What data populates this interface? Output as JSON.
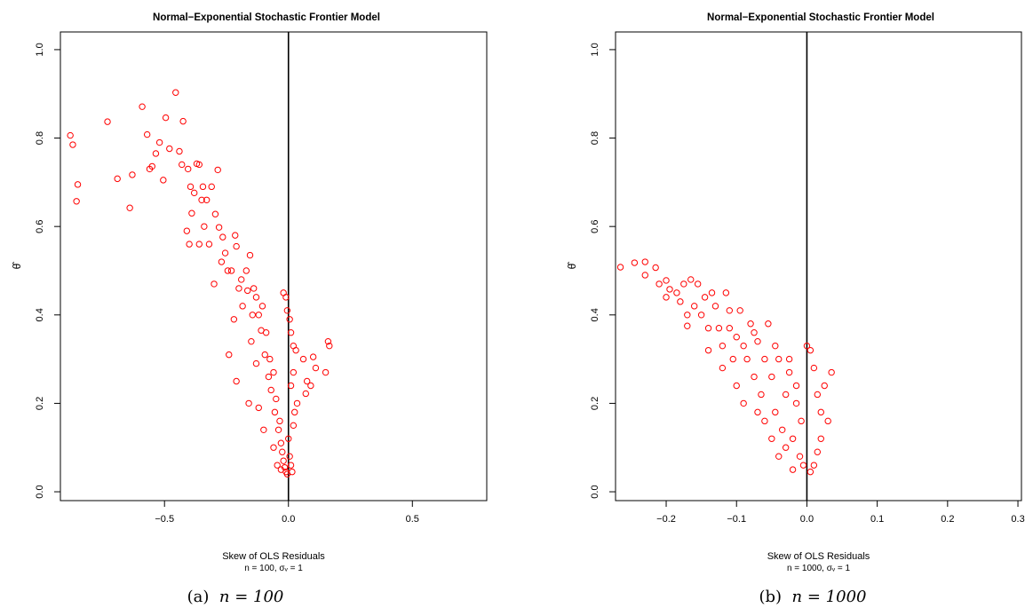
{
  "chart_data": [
    {
      "type": "scatter",
      "title": "Normal−Exponential Stochastic Frontier Model",
      "xlabel_line1": "Skew of OLS Residuals",
      "xlabel_line2": "n = 100, σᵥ = 1",
      "ylabel": "θ̂",
      "xlim": [
        -0.92,
        0.8
      ],
      "ylim": [
        -0.02,
        1.04
      ],
      "xticks": [
        -0.5,
        0.0,
        0.5
      ],
      "xtick_labels": [
        "−0.5",
        "0.0",
        "0.5"
      ],
      "yticks": [
        0.0,
        0.2,
        0.4,
        0.6,
        0.8,
        1.0
      ],
      "ytick_labels": [
        "0.0",
        "0.2",
        "0.4",
        "0.6",
        "0.8",
        "1.0"
      ],
      "vline_x": 0,
      "grid": false,
      "marker": "open-circle",
      "color": "#ff0000",
      "caption_prefix": "(a)",
      "caption_math": "n = 100",
      "points": [
        [
          -0.88,
          0.806
        ],
        [
          -0.87,
          0.785
        ],
        [
          -0.85,
          0.695
        ],
        [
          -0.855,
          0.657
        ],
        [
          -0.73,
          0.837
        ],
        [
          -0.69,
          0.708
        ],
        [
          -0.64,
          0.642
        ],
        [
          -0.63,
          0.717
        ],
        [
          -0.59,
          0.871
        ],
        [
          -0.56,
          0.73
        ],
        [
          -0.55,
          0.736
        ],
        [
          -0.57,
          0.808
        ],
        [
          -0.535,
          0.765
        ],
        [
          -0.52,
          0.79
        ],
        [
          -0.505,
          0.705
        ],
        [
          -0.495,
          0.846
        ],
        [
          -0.48,
          0.776
        ],
        [
          -0.455,
          0.903
        ],
        [
          -0.44,
          0.77
        ],
        [
          -0.425,
          0.838
        ],
        [
          -0.43,
          0.74
        ],
        [
          -0.405,
          0.73
        ],
        [
          -0.395,
          0.69
        ],
        [
          -0.38,
          0.676
        ],
        [
          -0.37,
          0.742
        ],
        [
          -0.36,
          0.74
        ],
        [
          -0.35,
          0.66
        ],
        [
          -0.345,
          0.69
        ],
        [
          -0.33,
          0.66
        ],
        [
          -0.31,
          0.69
        ],
        [
          -0.285,
          0.728
        ],
        [
          -0.295,
          0.628
        ],
        [
          -0.28,
          0.598
        ],
        [
          -0.265,
          0.576
        ],
        [
          -0.27,
          0.52
        ],
        [
          -0.255,
          0.54
        ],
        [
          -0.245,
          0.5
        ],
        [
          -0.23,
          0.5
        ],
        [
          -0.215,
          0.58
        ],
        [
          -0.21,
          0.555
        ],
        [
          -0.2,
          0.46
        ],
        [
          -0.19,
          0.48
        ],
        [
          -0.185,
          0.42
        ],
        [
          -0.17,
          0.5
        ],
        [
          -0.165,
          0.455
        ],
        [
          -0.155,
          0.535
        ],
        [
          -0.145,
          0.4
        ],
        [
          -0.14,
          0.46
        ],
        [
          -0.13,
          0.44
        ],
        [
          -0.12,
          0.4
        ],
        [
          -0.11,
          0.365
        ],
        [
          -0.105,
          0.42
        ],
        [
          -0.095,
          0.31
        ],
        [
          -0.09,
          0.36
        ],
        [
          -0.08,
          0.26
        ],
        [
          -0.075,
          0.3
        ],
        [
          -0.07,
          0.23
        ],
        [
          -0.06,
          0.27
        ],
        [
          -0.055,
          0.18
        ],
        [
          -0.05,
          0.21
        ],
        [
          -0.04,
          0.14
        ],
        [
          -0.035,
          0.16
        ],
        [
          -0.03,
          0.11
        ],
        [
          -0.025,
          0.09
        ],
        [
          -0.02,
          0.07
        ],
        [
          -0.015,
          0.055
        ],
        [
          -0.01,
          0.045
        ],
        [
          -0.005,
          0.04
        ],
        [
          -0.02,
          0.45
        ],
        [
          -0.01,
          0.44
        ],
        [
          -0.005,
          0.41
        ],
        [
          0.005,
          0.39
        ],
        [
          0.01,
          0.36
        ],
        [
          0.02,
          0.33
        ],
        [
          0.03,
          0.32
        ],
        [
          0.02,
          0.27
        ],
        [
          0.01,
          0.24
        ],
        [
          0.06,
          0.3
        ],
        [
          0.1,
          0.305
        ],
        [
          0.11,
          0.28
        ],
        [
          0.09,
          0.24
        ],
        [
          0.075,
          0.25
        ],
        [
          0.035,
          0.2
        ],
        [
          0.025,
          0.18
        ],
        [
          0.02,
          0.15
        ],
        [
          0.16,
          0.34
        ],
        [
          0.165,
          0.33
        ],
        [
          0.15,
          0.27
        ],
        [
          0.07,
          0.222
        ],
        [
          0.0,
          0.12
        ],
        [
          0.005,
          0.08
        ],
        [
          0.01,
          0.06
        ],
        [
          0.015,
          0.045
        ],
        [
          -0.21,
          0.25
        ],
        [
          -0.22,
          0.39
        ],
        [
          -0.24,
          0.31
        ],
        [
          -0.16,
          0.2
        ],
        [
          -0.12,
          0.19
        ],
        [
          -0.1,
          0.14
        ],
        [
          -0.13,
          0.29
        ],
        [
          -0.15,
          0.34
        ],
        [
          -0.3,
          0.47
        ],
        [
          -0.32,
          0.56
        ],
        [
          -0.34,
          0.6
        ],
        [
          -0.36,
          0.56
        ],
        [
          -0.39,
          0.63
        ],
        [
          -0.41,
          0.59
        ],
        [
          -0.4,
          0.56
        ],
        [
          -0.06,
          0.1
        ],
        [
          -0.045,
          0.06
        ],
        [
          -0.03,
          0.05
        ]
      ]
    },
    {
      "type": "scatter",
      "title": "Normal−Exponential Stochastic Frontier Model",
      "xlabel_line1": "Skew of OLS Residuals",
      "xlabel_line2": "n = 1000, σᵥ = 1",
      "ylabel": "θ̂",
      "xlim": [
        -0.272,
        0.305
      ],
      "ylim": [
        -0.02,
        1.04
      ],
      "xticks": [
        -0.2,
        -0.1,
        0.0,
        0.1,
        0.2,
        0.3
      ],
      "xtick_labels": [
        "−0.2",
        "−0.1",
        "0.0",
        "0.1",
        "0.2",
        "0.3"
      ],
      "yticks": [
        0.0,
        0.2,
        0.4,
        0.6,
        0.8,
        1.0
      ],
      "ytick_labels": [
        "0.0",
        "0.2",
        "0.4",
        "0.6",
        "0.8",
        "1.0"
      ],
      "vline_x": 0,
      "grid": false,
      "marker": "open-circle",
      "color": "#ff0000",
      "caption_prefix": "(b)",
      "caption_math": "n = 1000",
      "points": [
        [
          -0.265,
          0.508
        ],
        [
          -0.245,
          0.518
        ],
        [
          -0.23,
          0.52
        ],
        [
          -0.23,
          0.49
        ],
        [
          -0.215,
          0.507
        ],
        [
          -0.21,
          0.47
        ],
        [
          -0.2,
          0.478
        ],
        [
          -0.195,
          0.458
        ],
        [
          -0.185,
          0.45
        ],
        [
          -0.18,
          0.43
        ],
        [
          -0.175,
          0.47
        ],
        [
          -0.17,
          0.4
        ],
        [
          -0.165,
          0.48
        ],
        [
          -0.16,
          0.42
        ],
        [
          -0.155,
          0.47
        ],
        [
          -0.15,
          0.4
        ],
        [
          -0.145,
          0.44
        ],
        [
          -0.14,
          0.37
        ],
        [
          -0.135,
          0.45
        ],
        [
          -0.13,
          0.42
        ],
        [
          -0.125,
          0.37
        ],
        [
          -0.12,
          0.33
        ],
        [
          -0.115,
          0.45
        ],
        [
          -0.11,
          0.41
        ],
        [
          -0.105,
          0.3
        ],
        [
          -0.1,
          0.35
        ],
        [
          -0.095,
          0.41
        ],
        [
          -0.09,
          0.33
        ],
        [
          -0.085,
          0.3
        ],
        [
          -0.08,
          0.38
        ],
        [
          -0.075,
          0.26
        ],
        [
          -0.07,
          0.34
        ],
        [
          -0.065,
          0.22
        ],
        [
          -0.06,
          0.3
        ],
        [
          -0.055,
          0.38
        ],
        [
          -0.05,
          0.26
        ],
        [
          -0.045,
          0.18
        ],
        [
          -0.04,
          0.3
        ],
        [
          -0.035,
          0.14
        ],
        [
          -0.03,
          0.22
        ],
        [
          -0.025,
          0.3
        ],
        [
          -0.02,
          0.12
        ],
        [
          -0.015,
          0.2
        ],
        [
          -0.01,
          0.08
        ],
        [
          -0.008,
          0.16
        ],
        [
          -0.005,
          0.06
        ],
        [
          0.0,
          0.33
        ],
        [
          0.005,
          0.32
        ],
        [
          0.01,
          0.28
        ],
        [
          0.015,
          0.22
        ],
        [
          0.02,
          0.18
        ],
        [
          0.025,
          0.24
        ],
        [
          0.035,
          0.27
        ],
        [
          0.03,
          0.16
        ],
        [
          0.02,
          0.12
        ],
        [
          0.015,
          0.09
        ],
        [
          0.01,
          0.06
        ],
        [
          0.005,
          0.045
        ],
        [
          -0.17,
          0.375
        ],
        [
          -0.2,
          0.44
        ],
        [
          -0.09,
          0.2
        ],
        [
          -0.07,
          0.18
        ],
        [
          -0.05,
          0.12
        ],
        [
          -0.03,
          0.1
        ],
        [
          -0.12,
          0.28
        ],
        [
          -0.14,
          0.32
        ],
        [
          -0.1,
          0.24
        ],
        [
          -0.06,
          0.16
        ],
        [
          -0.04,
          0.08
        ],
        [
          -0.02,
          0.05
        ],
        [
          -0.11,
          0.37
        ],
        [
          -0.075,
          0.36
        ],
        [
          -0.045,
          0.33
        ],
        [
          -0.025,
          0.27
        ],
        [
          -0.015,
          0.24
        ]
      ]
    }
  ]
}
